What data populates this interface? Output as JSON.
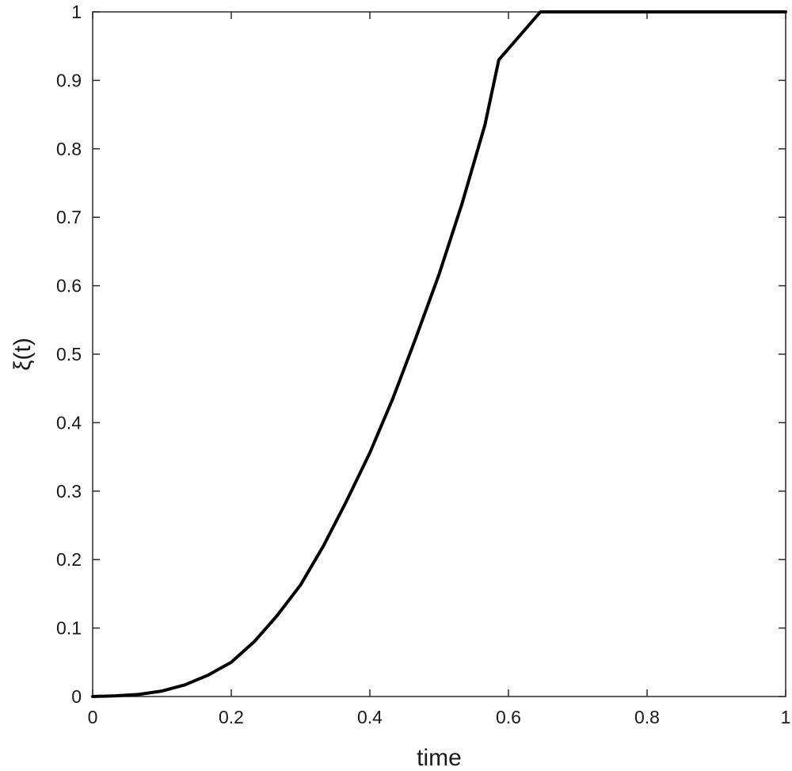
{
  "chart_data": {
    "type": "line",
    "xlabel": "time",
    "ylabel": "ξ(t)",
    "xlim": [
      0,
      1
    ],
    "ylim": [
      0,
      1
    ],
    "xticks": [
      0,
      0.2,
      0.4,
      0.6,
      0.8,
      1
    ],
    "yticks": [
      0,
      0.1,
      0.2,
      0.3,
      0.4,
      0.5,
      0.6,
      0.7,
      0.8,
      0.9,
      1
    ],
    "xtick_labels": [
      "0",
      "0.2",
      "0.4",
      "0.6",
      "0.8",
      "1"
    ],
    "ytick_labels": [
      "0",
      "0.1",
      "0.2",
      "0.3",
      "0.4",
      "0.5",
      "0.6",
      "0.7",
      "0.8",
      "0.9",
      "1"
    ],
    "grid": false,
    "box": true,
    "series": [
      {
        "color": "#000000",
        "x": [
          0,
          0.033,
          0.066,
          0.1,
          0.133,
          0.166,
          0.2,
          0.233,
          0.266,
          0.3,
          0.333,
          0.366,
          0.4,
          0.433,
          0.466,
          0.5,
          0.533,
          0.566,
          0.586,
          0.646,
          1
        ],
        "y": [
          0,
          0.001,
          0.003,
          0.008,
          0.017,
          0.031,
          0.05,
          0.08,
          0.118,
          0.163,
          0.22,
          0.285,
          0.356,
          0.435,
          0.523,
          0.617,
          0.72,
          0.835,
          0.93,
          1,
          1
        ]
      }
    ]
  }
}
